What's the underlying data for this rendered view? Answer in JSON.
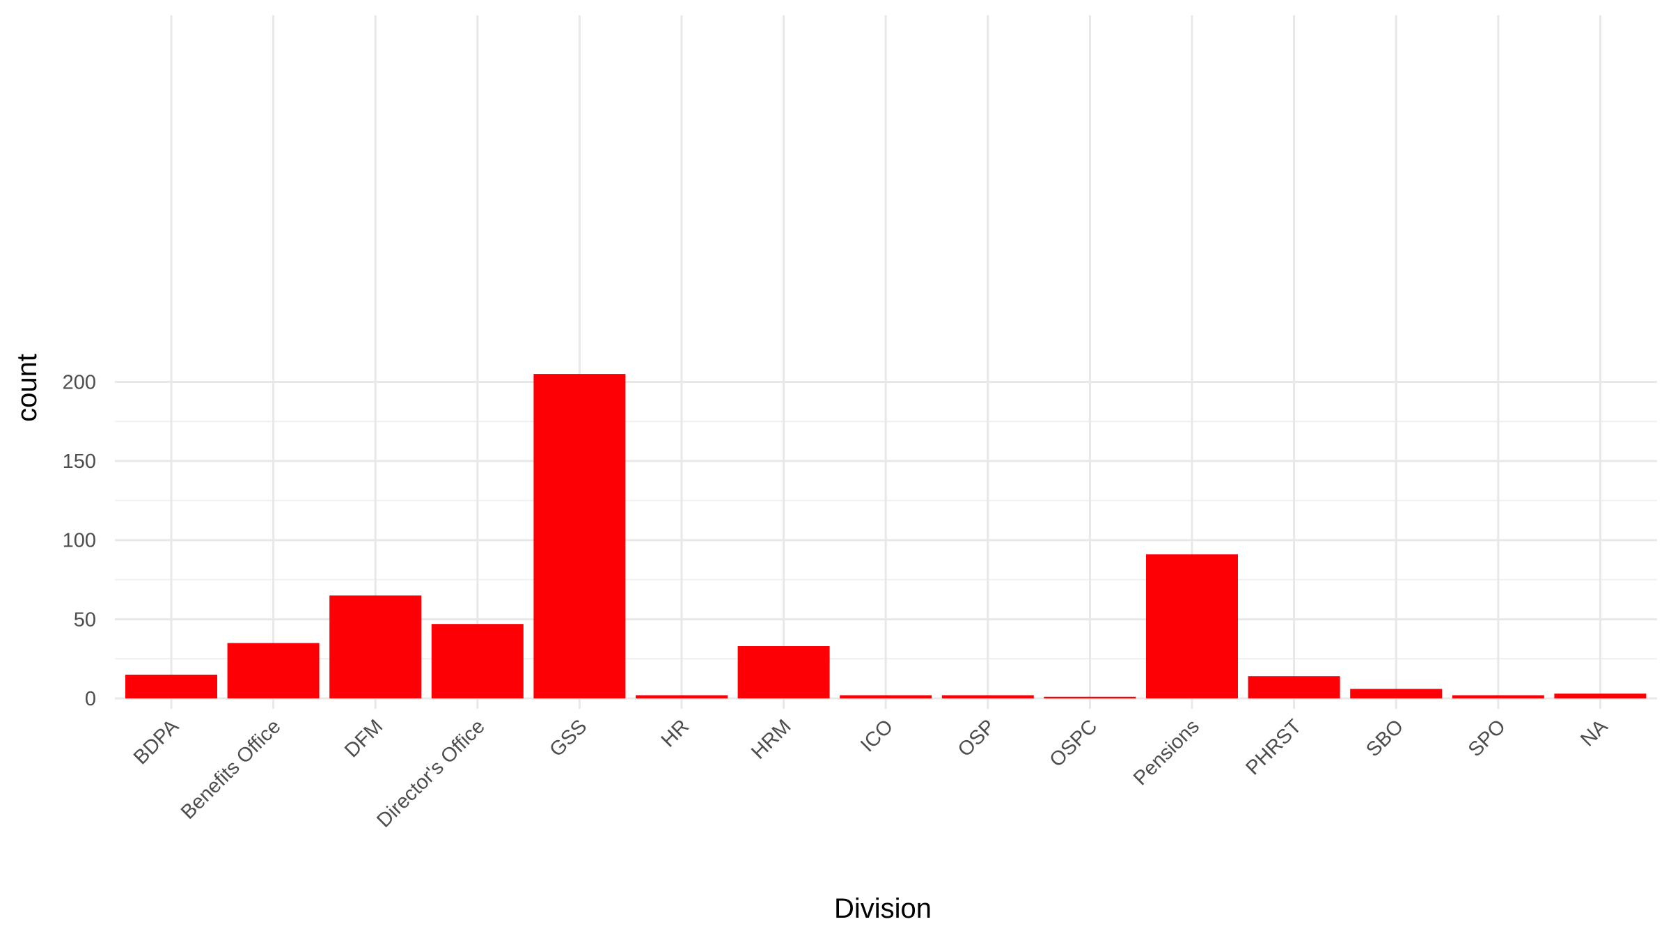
{
  "chart_data": {
    "type": "bar",
    "xlabel": "Division",
    "ylabel": "count",
    "categories": [
      "BDPA",
      "Benefits Office",
      "DFM",
      "Director's Office",
      "GSS",
      "HR",
      "HRM",
      "ICO",
      "OSP",
      "OSPC",
      "Pensions",
      "PHRST",
      "SBO",
      "SPO",
      "NA"
    ],
    "values": [
      15,
      35,
      65,
      47,
      205,
      2,
      33,
      2,
      2,
      1,
      91,
      14,
      6,
      2,
      3
    ],
    "ylim": [
      0,
      205
    ],
    "yticks": [
      0,
      50,
      100,
      150,
      200
    ],
    "grid": true,
    "bar_color": "#fc0006",
    "grid_color": "#e8e8e8",
    "x_tick_angle": -45
  }
}
